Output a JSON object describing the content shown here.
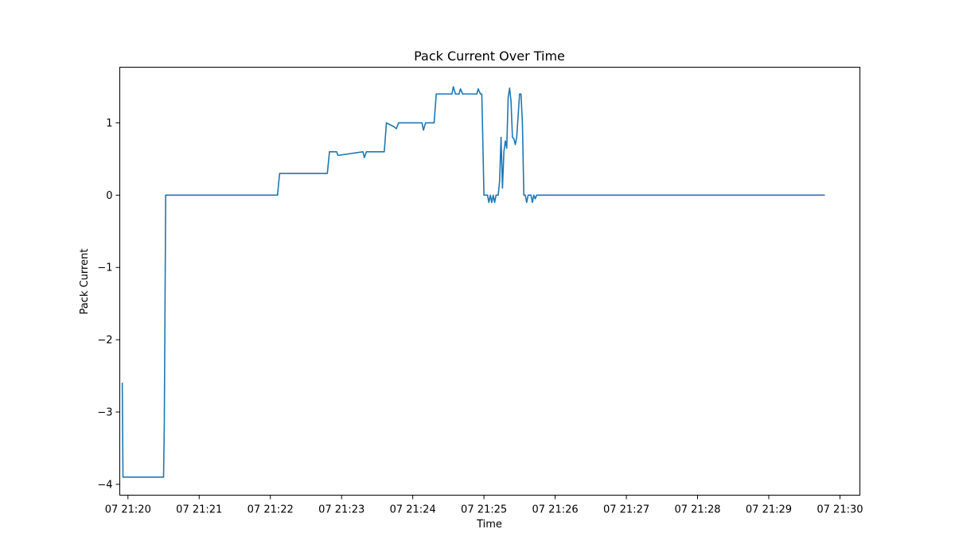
{
  "chart_data": {
    "type": "line",
    "title": "Pack Current Over Time",
    "xlabel": "Time",
    "ylabel": "Pack Current",
    "x_unit": "minutes past 21:20",
    "xlim": [
      -0.115,
      10.28
    ],
    "ylim": [
      -4.15,
      1.77
    ],
    "grid": false,
    "legend": false,
    "color": "#1f77b4",
    "x_tick_values": [
      0,
      1,
      2,
      3,
      4,
      5,
      6,
      7,
      8,
      9,
      10
    ],
    "x_tick_labels": [
      "07 21:20",
      "07 21:21",
      "07 21:22",
      "07 21:23",
      "07 21:24",
      "07 21:25",
      "07 21:26",
      "07 21:27",
      "07 21:28",
      "07 21:29",
      "07 21:30"
    ],
    "y_tick_values": [
      -4,
      -3,
      -2,
      -1,
      0,
      1
    ],
    "y_tick_labels": [
      "−4",
      "−3",
      "−2",
      "−1",
      "0",
      "1"
    ],
    "series": [
      {
        "x": [
          -0.08,
          -0.07,
          0.5,
          0.51,
          0.53,
          2.1,
          2.13,
          2.8,
          2.83,
          2.93,
          2.95,
          3.3,
          3.32,
          3.35,
          3.6,
          3.63,
          3.73,
          3.77,
          3.8,
          4.13,
          4.15,
          4.18,
          4.3,
          4.33,
          4.55,
          4.57,
          4.6,
          4.65,
          4.67,
          4.7,
          4.9,
          4.92,
          4.95,
          4.97,
          5.0,
          5.05,
          5.07,
          5.09,
          5.11,
          5.13,
          5.15,
          5.17,
          5.2,
          5.22,
          5.24,
          5.26,
          5.28,
          5.3,
          5.32,
          5.34,
          5.36,
          5.38,
          5.4,
          5.42,
          5.44,
          5.46,
          5.48,
          5.5,
          5.52,
          5.54,
          5.56,
          5.58,
          5.6,
          5.62,
          5.64,
          5.66,
          5.68,
          5.7,
          5.72,
          5.74,
          5.76,
          5.78,
          5.8,
          5.82,
          5.84,
          5.86,
          5.88,
          9.78
        ],
        "y": [
          -2.6,
          -3.9,
          -3.9,
          -3.2,
          0.0,
          0.0,
          0.3,
          0.3,
          0.6,
          0.6,
          0.55,
          0.6,
          0.52,
          0.6,
          0.6,
          1.0,
          0.95,
          0.92,
          1.0,
          1.0,
          0.9,
          1.0,
          1.0,
          1.4,
          1.4,
          1.5,
          1.4,
          1.4,
          1.47,
          1.4,
          1.4,
          1.47,
          1.4,
          1.4,
          0.0,
          0.0,
          -0.1,
          0.0,
          -0.1,
          0.0,
          -0.1,
          0.0,
          0.0,
          0.2,
          0.8,
          0.1,
          0.6,
          0.75,
          0.65,
          1.35,
          1.48,
          1.3,
          0.8,
          0.78,
          0.7,
          0.8,
          1.1,
          1.4,
          1.4,
          1.0,
          0.0,
          0.0,
          -0.1,
          0.0,
          0.0,
          0.0,
          -0.1,
          0.0,
          -0.05,
          0.0,
          0.0,
          0.0,
          0.0,
          0.0,
          0.0,
          0.0,
          0.0,
          0.0
        ]
      }
    ]
  }
}
